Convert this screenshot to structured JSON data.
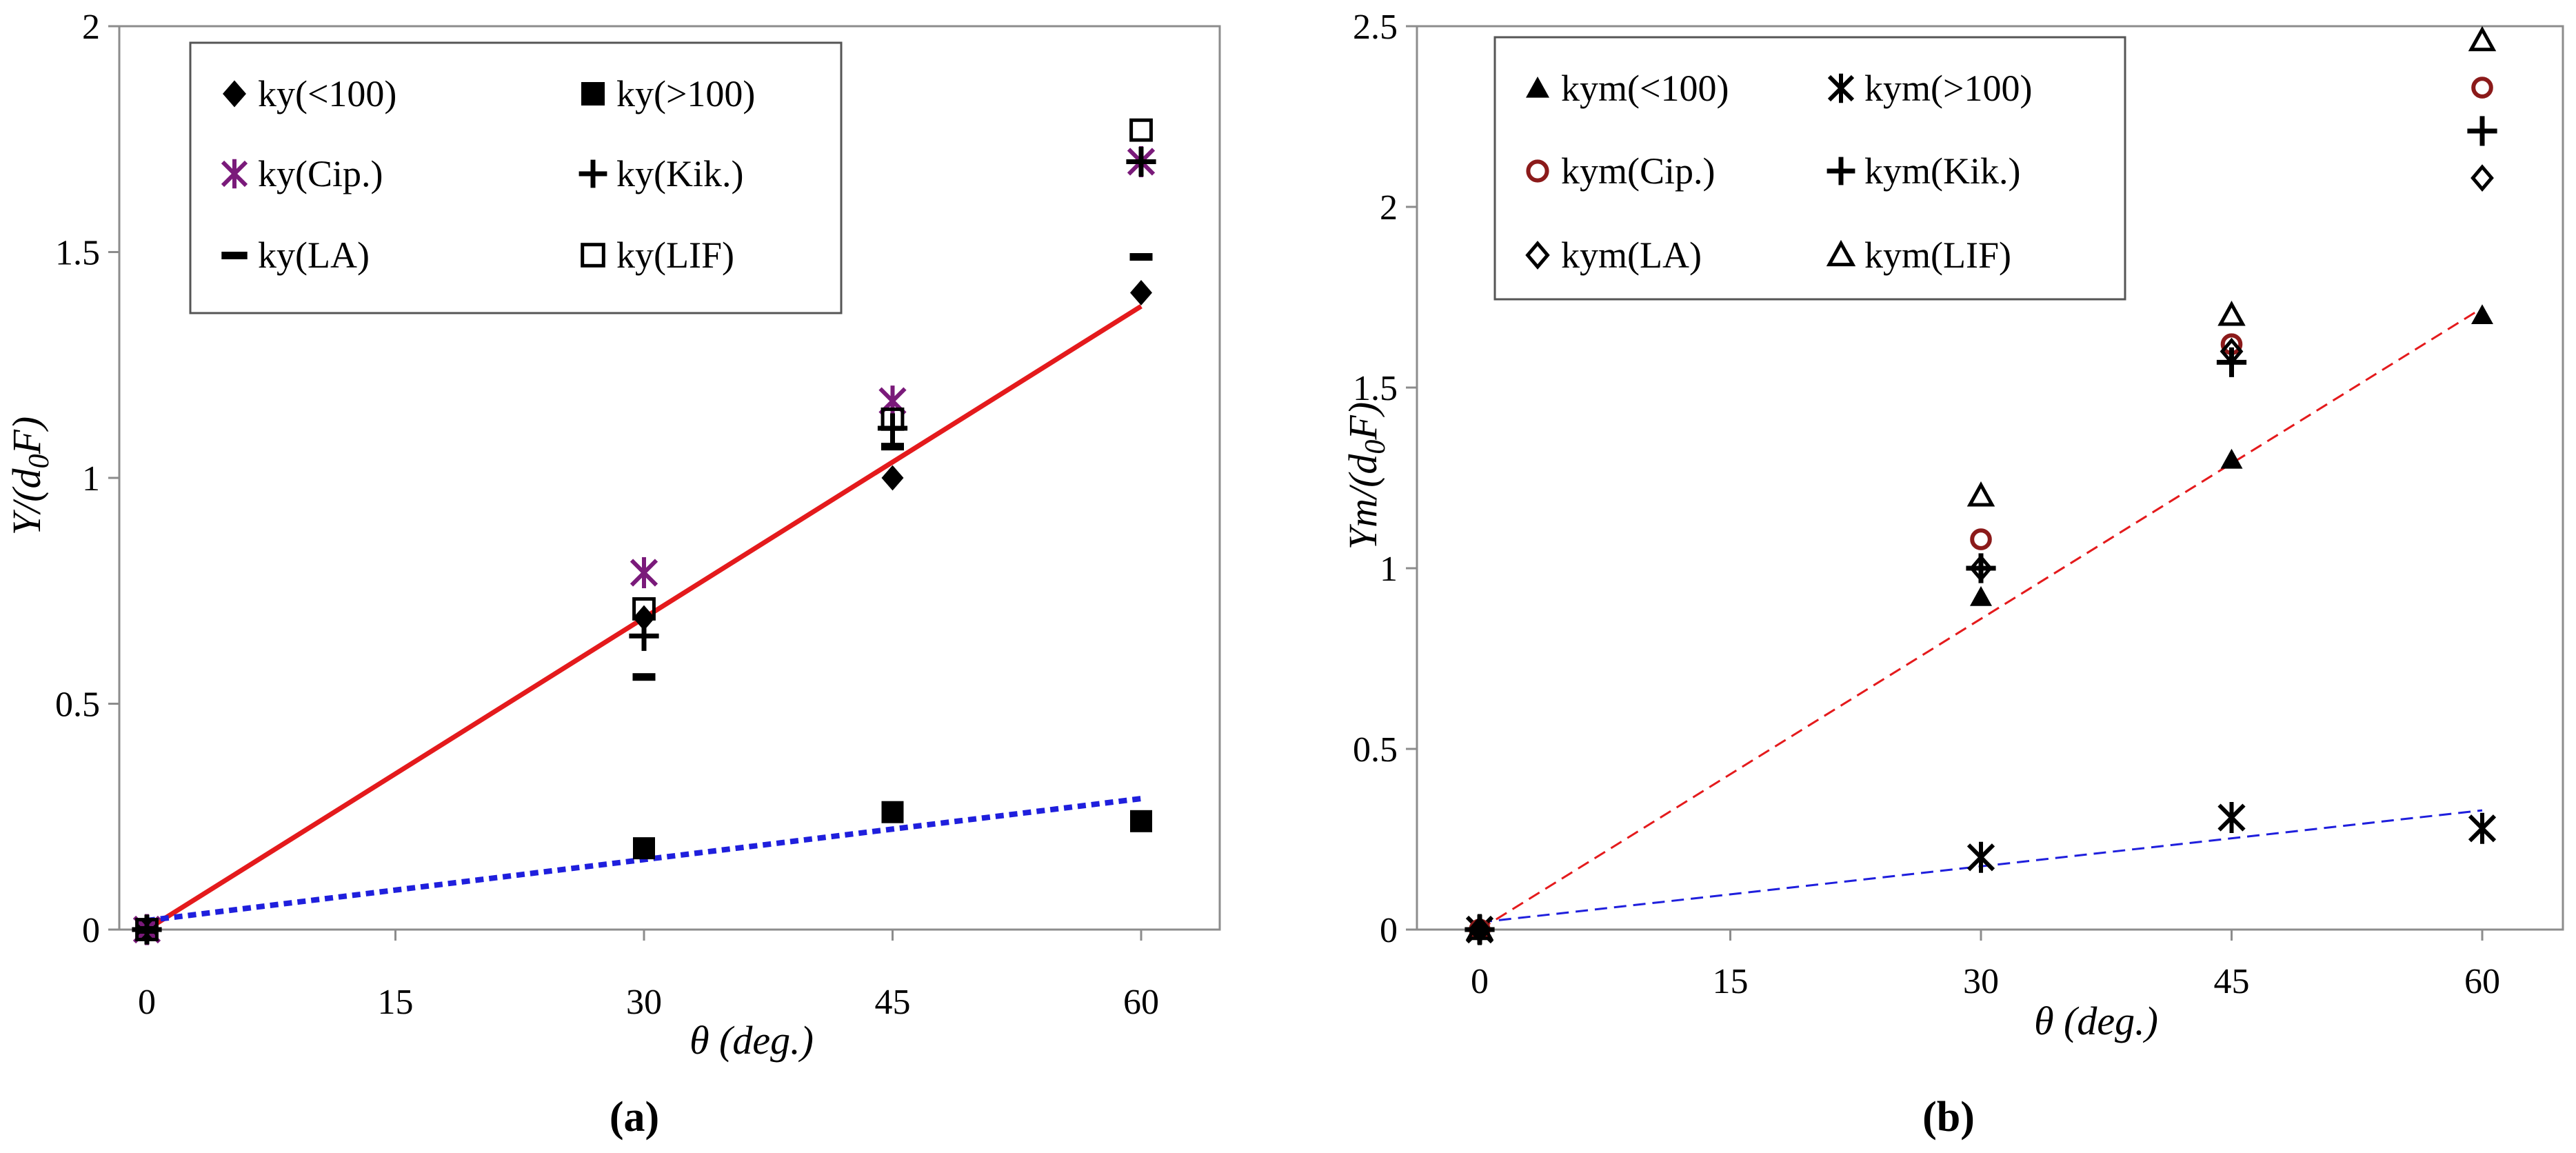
{
  "chart_data": [
    {
      "id": "a",
      "type": "scatter",
      "panel_label": "(a)",
      "xlabel": "θ (deg.)",
      "ylabel_main": "Y/(d",
      "ylabel_sub": "0",
      "ylabel_tail": "F)",
      "xlim": [
        -2,
        65
      ],
      "ylim": [
        0,
        2
      ],
      "xticks": [
        0,
        15,
        30,
        45,
        60
      ],
      "xtick_labels": [
        "0",
        "15",
        "30",
        "45",
        "60"
      ],
      "yticks": [
        0,
        0.5,
        1,
        1.5,
        2
      ],
      "ytick_labels": [
        "0",
        "0.5",
        "1",
        "1.5",
        "2"
      ],
      "legend_position": "top-center",
      "series": [
        {
          "name": "ky(<100)",
          "marker": "diamond-filled",
          "color": "#000000",
          "x": [
            0,
            30,
            45,
            60
          ],
          "y": [
            0,
            0.69,
            1.0,
            1.41
          ]
        },
        {
          "name": "ky(>100)",
          "marker": "square-filled",
          "color": "#000000",
          "x": [
            0,
            30,
            45,
            60
          ],
          "y": [
            0,
            0.18,
            0.26,
            0.24
          ]
        },
        {
          "name": "ky(Cip.)",
          "marker": "asterisk",
          "color": "#7a1a7a",
          "x": [
            0,
            30,
            45,
            60
          ],
          "y": [
            0,
            0.79,
            1.17,
            1.7
          ]
        },
        {
          "name": "ky(Kik.)",
          "marker": "plus",
          "color": "#000000",
          "x": [
            0,
            30,
            45,
            60
          ],
          "y": [
            0,
            0.65,
            1.11,
            1.7
          ]
        },
        {
          "name": "ky(LA)",
          "marker": "dash",
          "color": "#000000",
          "x": [
            0,
            30,
            45,
            60
          ],
          "y": [
            0,
            0.56,
            1.07,
            1.49
          ]
        },
        {
          "name": "ky(LIF)",
          "marker": "square-open",
          "color": "#000000",
          "x": [
            0,
            30,
            45,
            60
          ],
          "y": [
            0,
            0.71,
            1.13,
            1.77
          ]
        }
      ],
      "lines": [
        {
          "name": "fit-ky(<100)",
          "style": "solid",
          "color": "#e41a1c",
          "x": [
            0,
            60
          ],
          "y": [
            0,
            1.38
          ]
        },
        {
          "name": "fit-ky(>100)",
          "style": "dotted",
          "color": "#1f1fdd",
          "x": [
            0,
            60
          ],
          "y": [
            0.02,
            0.29
          ]
        }
      ]
    },
    {
      "id": "b",
      "type": "scatter",
      "panel_label": "(b)",
      "xlabel": "θ (deg.)",
      "ylabel_main": "Ym/(d",
      "ylabel_sub": "0",
      "ylabel_tail": "F)",
      "xlim": [
        -2,
        65
      ],
      "ylim": [
        0,
        2.5
      ],
      "xticks": [
        0,
        15,
        30,
        45,
        60
      ],
      "xtick_labels": [
        "0",
        "15",
        "30",
        "45",
        "60"
      ],
      "yticks": [
        0,
        0.5,
        1,
        1.5,
        2,
        2.5
      ],
      "ytick_labels": [
        "0",
        "0.5",
        "1",
        "1.5",
        "2",
        "2.5"
      ],
      "legend_position": "top-left",
      "series": [
        {
          "name": "kym(<100)",
          "marker": "triangle-filled",
          "color": "#000000",
          "x": [
            0,
            30,
            45,
            60
          ],
          "y": [
            0,
            0.92,
            1.3,
            1.7
          ]
        },
        {
          "name": "kym(>100)",
          "marker": "asterisk",
          "color": "#000000",
          "x": [
            0,
            30,
            45,
            60
          ],
          "y": [
            0,
            0.2,
            0.31,
            0.28
          ]
        },
        {
          "name": "kym(Cip.)",
          "marker": "circle-open",
          "color": "#8b1a1a",
          "x": [
            0,
            30,
            45,
            60
          ],
          "y": [
            0,
            1.08,
            1.62,
            2.33
          ]
        },
        {
          "name": "kym(Kik.)",
          "marker": "plus",
          "color": "#000000",
          "x": [
            0,
            30,
            45,
            60
          ],
          "y": [
            0,
            1.0,
            1.57,
            2.21
          ]
        },
        {
          "name": "kym(LA)",
          "marker": "diamond-open",
          "color": "#000000",
          "x": [
            0,
            30,
            45,
            60
          ],
          "y": [
            0,
            1.0,
            1.6,
            2.08
          ]
        },
        {
          "name": "kym(LIF)",
          "marker": "triangle-open",
          "color": "#000000",
          "x": [
            0,
            30,
            45,
            60
          ],
          "y": [
            0,
            1.2,
            1.7,
            2.46
          ]
        }
      ],
      "lines": [
        {
          "name": "fit-kym(<100)",
          "style": "dashed",
          "color": "#e41a1c",
          "x": [
            0,
            60
          ],
          "y": [
            0,
            1.72
          ]
        },
        {
          "name": "fit-kym(>100)",
          "style": "dashed",
          "color": "#1f1fdd",
          "x": [
            0,
            60
          ],
          "y": [
            0.02,
            0.33
          ]
        }
      ]
    }
  ]
}
